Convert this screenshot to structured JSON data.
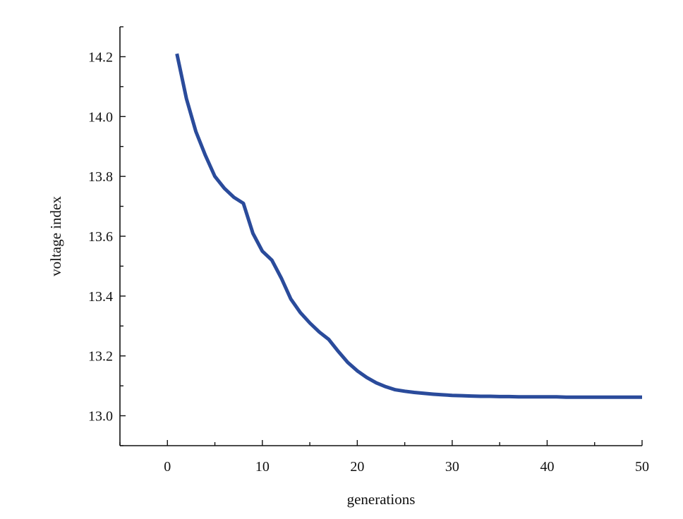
{
  "chart_data": {
    "type": "line",
    "title": "",
    "xlabel": "generations",
    "ylabel": "voltage index",
    "xlim": [
      -5,
      50
    ],
    "ylim": [
      12.9,
      14.3
    ],
    "x_ticks": [
      0,
      10,
      20,
      30,
      40,
      50
    ],
    "y_ticks": [
      13.0,
      13.2,
      13.4,
      13.6,
      13.8,
      14.0,
      14.2
    ],
    "x_tick_labels": [
      "0",
      "10",
      "20",
      "30",
      "40",
      "50"
    ],
    "y_tick_labels": [
      "13.0",
      "13.2",
      "13.4",
      "13.6",
      "13.8",
      "14.0",
      "14.2"
    ],
    "grid": false,
    "series": [
      {
        "color": "#2a4b9b",
        "x": [
          1,
          2,
          3,
          4,
          5,
          6,
          7,
          8,
          9,
          10,
          11,
          12,
          13,
          14,
          15,
          16,
          17,
          18,
          19,
          20,
          21,
          22,
          23,
          24,
          25,
          26,
          27,
          28,
          29,
          30,
          31,
          32,
          33,
          34,
          35,
          36,
          37,
          38,
          39,
          40,
          41,
          42,
          43,
          44,
          45,
          46,
          47,
          48,
          49,
          50
        ],
        "y": [
          14.21,
          14.06,
          13.95,
          13.87,
          13.8,
          13.76,
          13.73,
          13.71,
          13.61,
          13.55,
          13.52,
          13.46,
          13.39,
          13.345,
          13.31,
          13.28,
          13.255,
          13.215,
          13.178,
          13.15,
          13.128,
          13.11,
          13.097,
          13.087,
          13.082,
          13.078,
          13.075,
          13.072,
          13.07,
          13.068,
          13.067,
          13.066,
          13.065,
          13.065,
          13.064,
          13.064,
          13.063,
          13.063,
          13.063,
          13.063,
          13.063,
          13.062,
          13.062,
          13.062,
          13.062,
          13.062,
          13.062,
          13.062,
          13.062,
          13.062
        ]
      }
    ]
  }
}
